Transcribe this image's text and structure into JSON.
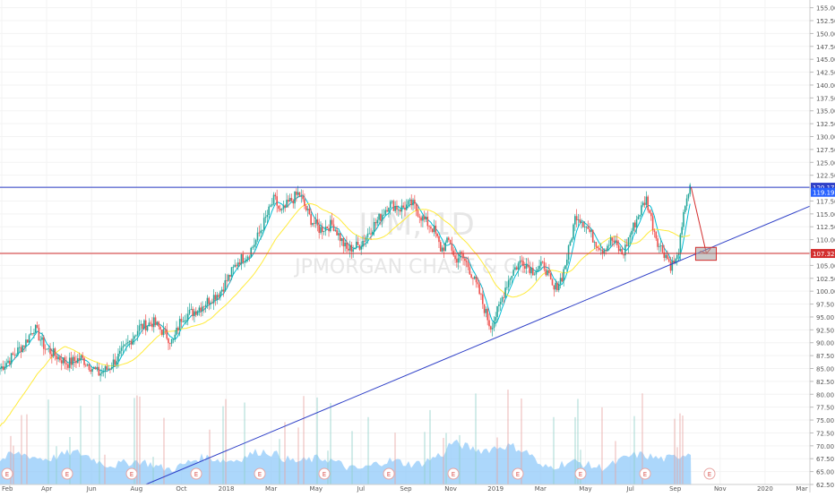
{
  "chart_data": {
    "type": "candlestick",
    "watermark": {
      "symbol": "JPM, 1D",
      "name": "JPMORGAN CHASE & CO."
    },
    "price_axis": {
      "range": [
        62.5,
        156.5
      ],
      "ticks": [
        "155.00",
        "152.50",
        "150.00",
        "147.50",
        "145.00",
        "142.50",
        "140.00",
        "137.50",
        "135.00",
        "132.50",
        "130.00",
        "127.50",
        "125.00",
        "122.50",
        "120.00",
        "117.50",
        "115.00",
        "112.50",
        "110.00",
        "107.50",
        "105.00",
        "102.50",
        "100.00",
        "97.50",
        "95.00",
        "92.50",
        "90.00",
        "87.50",
        "85.00",
        "82.50",
        "80.00",
        "77.50",
        "75.00",
        "72.50",
        "70.00",
        "67.50",
        "65.00",
        "62.50"
      ],
      "price_labels": [
        {
          "text": "120.17",
          "value": 120.17,
          "color": "#2e3fc7"
        },
        {
          "text": "119.19",
          "value": 119.19,
          "color": "#2962ff"
        },
        {
          "text": "107.32",
          "value": 107.32,
          "color": "#d32f2f"
        }
      ]
    },
    "time_axis": {
      "labels": [
        "Feb",
        "Apr",
        "Jun",
        "Aug",
        "Oct",
        "2018",
        "Mar",
        "May",
        "Jul",
        "Sep",
        "Nov",
        "2019",
        "Mar",
        "May",
        "Jul",
        "Sep",
        "Nov",
        "2020",
        "Mar"
      ]
    },
    "earnings_markers": [
      "E",
      "E",
      "E",
      "E",
      "E",
      "E",
      "E",
      "E",
      "E",
      "E",
      "E"
    ],
    "close_series": {
      "t": [
        0,
        12,
        28,
        38,
        50,
        62,
        75,
        90,
        110,
        120,
        135,
        155,
        170,
        182,
        192,
        202,
        215,
        230,
        245,
        255,
        265,
        275,
        285,
        295,
        305,
        312,
        320,
        332,
        345,
        355,
        370,
        385,
        400,
        412,
        425,
        432,
        445,
        458,
        470,
        482,
        490,
        500,
        505,
        512,
        520,
        532,
        545,
        555,
        562,
        570,
        580,
        592,
        605,
        615,
        625,
        632,
        640,
        650,
        660,
        670,
        680,
        692,
        700,
        710,
        718,
        725,
        732,
        740,
        745,
        752,
        758,
        762,
        768
      ],
      "c": [
        85,
        87,
        90,
        93,
        89,
        87.5,
        86,
        87,
        84,
        85,
        88,
        93,
        94,
        92,
        90,
        95,
        96,
        98,
        100,
        103,
        106,
        107,
        110,
        114,
        118,
        115,
        117,
        119,
        114,
        112,
        113,
        108,
        109,
        112,
        115,
        117,
        116,
        117,
        114,
        112,
        108,
        110,
        106,
        107,
        105,
        100,
        93,
        97,
        101,
        104,
        106,
        104,
        105,
        100,
        103,
        108,
        115,
        113,
        110,
        108,
        110,
        107,
        111,
        115,
        118,
        113,
        109,
        107,
        105,
        106,
        112,
        118,
        120.17
      ],
      "t_range": [
        0,
        900
      ],
      "color_up": "#26a69a",
      "color_down": "#ef5350"
    },
    "moving_averages": [
      {
        "color": "#00bcd4"
      },
      {
        "color": "#ffeb3b"
      }
    ],
    "volume": {
      "color": "#90caf9"
    },
    "levels": [
      {
        "kind": "horizontal",
        "value": 120.17,
        "color": "#2e3fc7"
      },
      {
        "kind": "horizontal",
        "value": 107.32,
        "color": "#d32f2f"
      },
      {
        "kind": "trendline",
        "from": {
          "t": 162,
          "value": 62.5
        },
        "to": {
          "t": 900,
          "value": 116.5
        },
        "color": "#2e3fc7"
      }
    ],
    "projection": {
      "arrow_from": {
        "t": 768,
        "value": 120.17
      },
      "arrow_to": {
        "t": 785,
        "value": 107.3
      },
      "target_box": {
        "t": [
          773,
          796
        ],
        "value": [
          106,
          108.5
        ]
      },
      "color": "#d32f2f"
    }
  }
}
